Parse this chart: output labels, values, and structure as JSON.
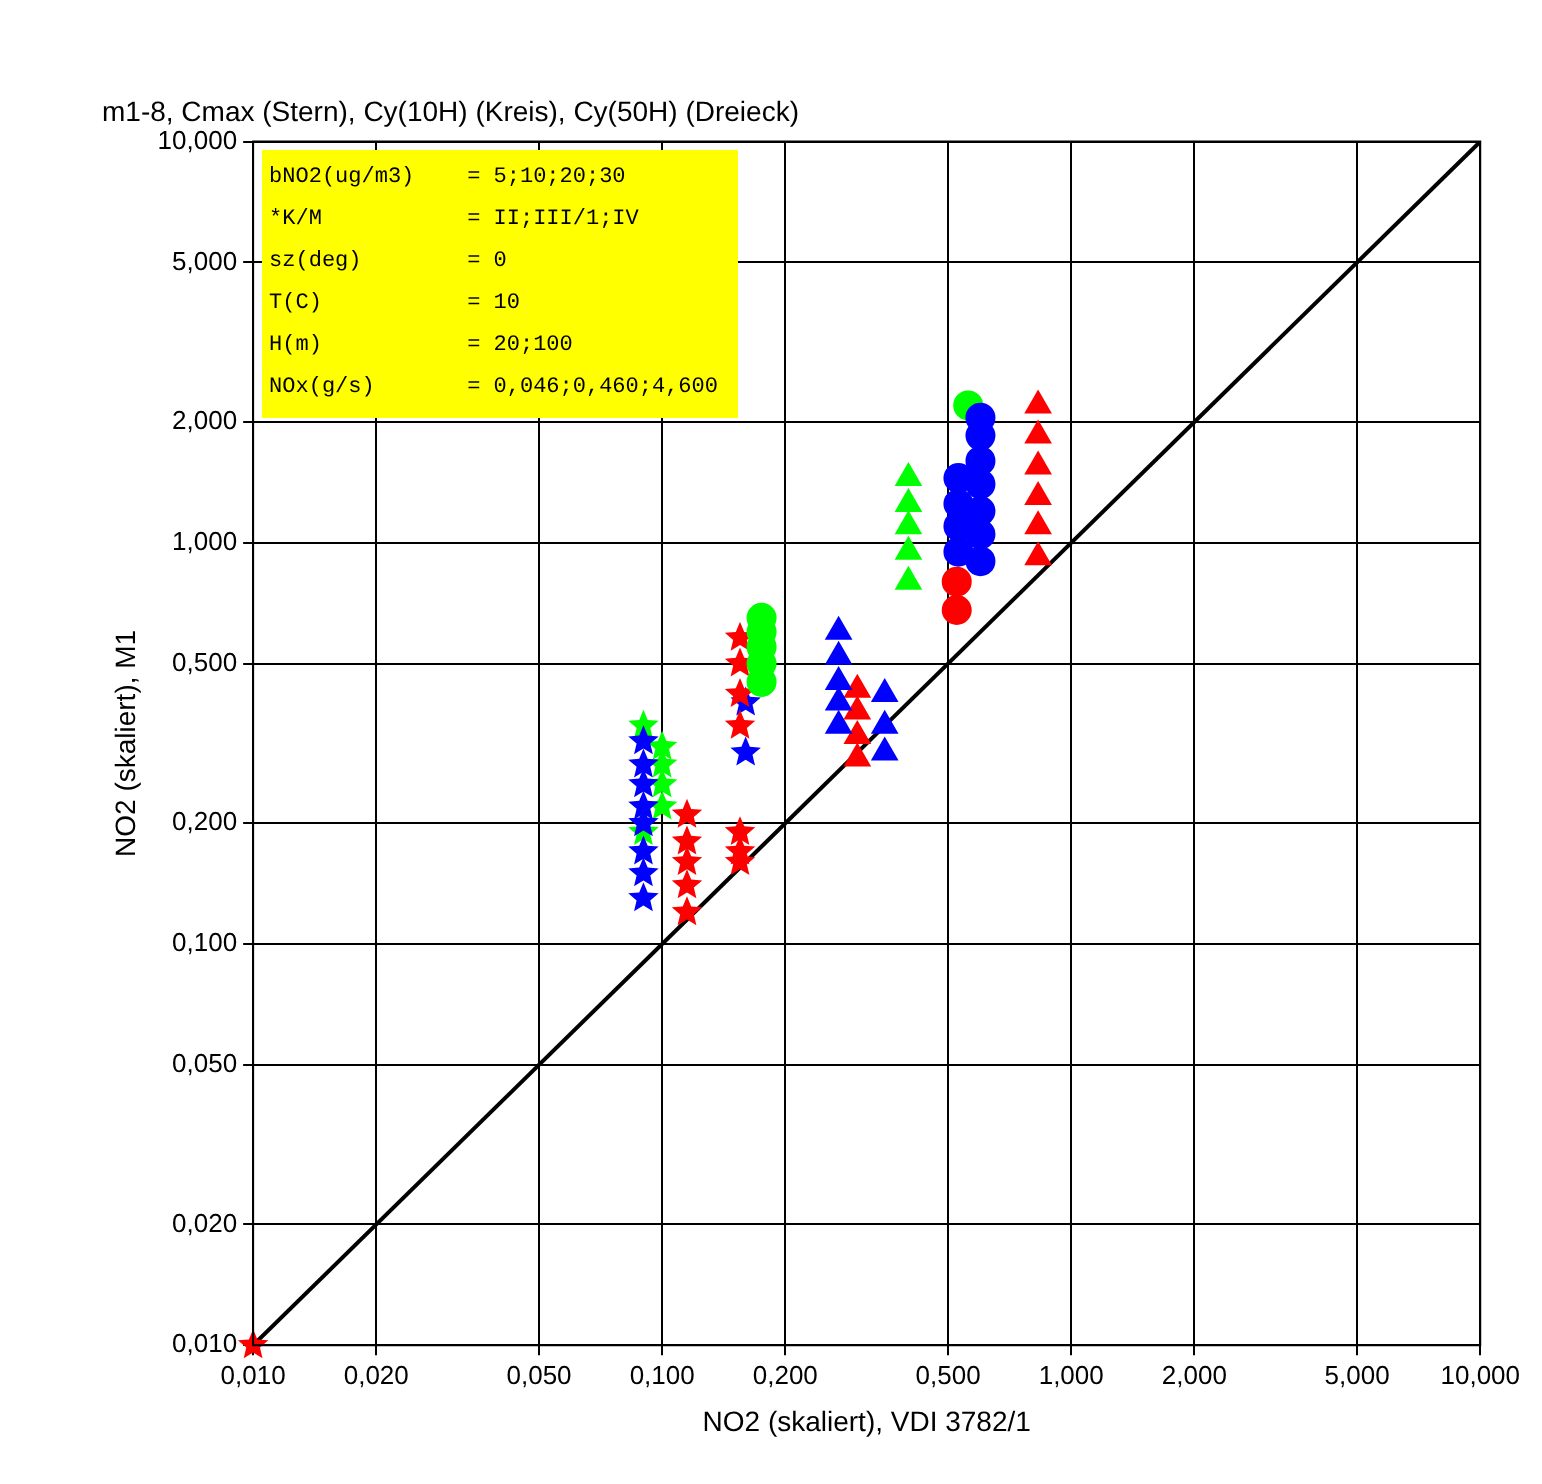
{
  "chart_data": {
    "type": "scatter",
    "title": "m1-8, Cmax (Stern), Cy(10H) (Kreis), Cy(50H) (Dreieck)",
    "xlabel": "NO2 (skaliert), VDI 3782/1",
    "ylabel": "NO2 (skaliert), M1",
    "annotations": [
      "bNO2(ug/m3)    = 5;10;20;30",
      "*K/M           = II;III/1;IV",
      "sz(deg)        = 0",
      "T(C)           = 10",
      "H(m)           = 20;100",
      "NOx(g/s)       = 0,046;0,460;4,600"
    ],
    "log": "xy",
    "grid": true,
    "legend": false,
    "xlim": [
      0.01,
      10
    ],
    "ylim": [
      0.01,
      10
    ],
    "xticks": [
      {
        "value": 0.01,
        "label": "0,010"
      },
      {
        "value": 0.02,
        "label": "0,020"
      },
      {
        "value": 0.05,
        "label": "0,050"
      },
      {
        "value": 0.1,
        "label": "0,100"
      },
      {
        "value": 0.2,
        "label": "0,200"
      },
      {
        "value": 0.5,
        "label": "0,500"
      },
      {
        "value": 1,
        "label": "1,000"
      },
      {
        "value": 2,
        "label": "2,000"
      },
      {
        "value": 5,
        "label": "5,000"
      },
      {
        "value": 10,
        "label": "10,000"
      }
    ],
    "yticks": [
      {
        "value": 0.01,
        "label": "0,010"
      },
      {
        "value": 0.02,
        "label": "0,020"
      },
      {
        "value": 0.05,
        "label": "0,050"
      },
      {
        "value": 0.1,
        "label": "0,100"
      },
      {
        "value": 0.2,
        "label": "0,200"
      },
      {
        "value": 0.5,
        "label": "0,500"
      },
      {
        "value": 1,
        "label": "1,000"
      },
      {
        "value": 2,
        "label": "2,000"
      },
      {
        "value": 5,
        "label": "5,000"
      },
      {
        "value": 10,
        "label": "10,000"
      }
    ],
    "series": [
      {
        "type": "line",
        "color": "#000000",
        "marker": "none",
        "x": [
          0.01,
          10
        ],
        "values": [
          0.01,
          10
        ]
      },
      {
        "color": "#00ff00",
        "marker": "star",
        "x": [
          0.09,
          0.09,
          0.1,
          0.1,
          0.1,
          0.1
        ],
        "values": [
          0.35,
          0.19,
          0.22,
          0.25,
          0.28,
          0.31
        ]
      },
      {
        "color": "#0000ff",
        "marker": "star",
        "x": [
          0.09,
          0.09,
          0.09,
          0.09,
          0.09,
          0.09,
          0.09,
          0.09,
          0.16,
          0.16
        ],
        "values": [
          0.13,
          0.15,
          0.17,
          0.2,
          0.22,
          0.25,
          0.28,
          0.32,
          0.3,
          0.4
        ]
      },
      {
        "color": "#ff0000",
        "marker": "star",
        "x": [
          0.01,
          0.115,
          0.115,
          0.115,
          0.115,
          0.115,
          0.155,
          0.155,
          0.155,
          0.155,
          0.155,
          0.155,
          0.155
        ],
        "values": [
          0.01,
          0.12,
          0.14,
          0.16,
          0.18,
          0.21,
          0.16,
          0.17,
          0.19,
          0.35,
          0.42,
          0.5,
          0.58
        ]
      },
      {
        "color": "#ff0000",
        "marker": "circle",
        "x": [
          0.525,
          0.525
        ],
        "values": [
          0.68,
          0.8
        ]
      },
      {
        "color": "#00ff00",
        "marker": "circle",
        "x": [
          0.175,
          0.175,
          0.175,
          0.175,
          0.175,
          0.56
        ],
        "values": [
          0.45,
          0.5,
          0.55,
          0.6,
          0.65,
          2.2
        ]
      },
      {
        "color": "#0000ff",
        "marker": "circle",
        "x": [
          0.53,
          0.53,
          0.53,
          0.53,
          0.6,
          0.6,
          0.6,
          0.6,
          0.6,
          0.6,
          0.6
        ],
        "values": [
          0.95,
          1.1,
          1.25,
          1.45,
          0.9,
          1.05,
          1.2,
          1.4,
          1.6,
          1.85,
          2.05
        ]
      },
      {
        "color": "#00ff00",
        "marker": "triangle",
        "x": [
          0.4,
          0.4,
          0.4,
          0.4,
          0.4
        ],
        "values": [
          0.8,
          0.95,
          1.1,
          1.25,
          1.45
        ]
      },
      {
        "color": "#ff0000",
        "marker": "triangle",
        "x": [
          0.83,
          0.83,
          0.83,
          0.83,
          0.83,
          0.83,
          0.3,
          0.3,
          0.3,
          0.3
        ],
        "values": [
          0.92,
          1.1,
          1.3,
          1.55,
          1.85,
          2.2,
          0.29,
          0.33,
          0.38,
          0.43
        ]
      },
      {
        "color": "#0000ff",
        "marker": "triangle",
        "x": [
          0.27,
          0.27,
          0.27,
          0.27,
          0.27,
          0.35,
          0.35,
          0.35
        ],
        "values": [
          0.35,
          0.4,
          0.45,
          0.52,
          0.6,
          0.3,
          0.35,
          0.42
        ]
      }
    ]
  }
}
